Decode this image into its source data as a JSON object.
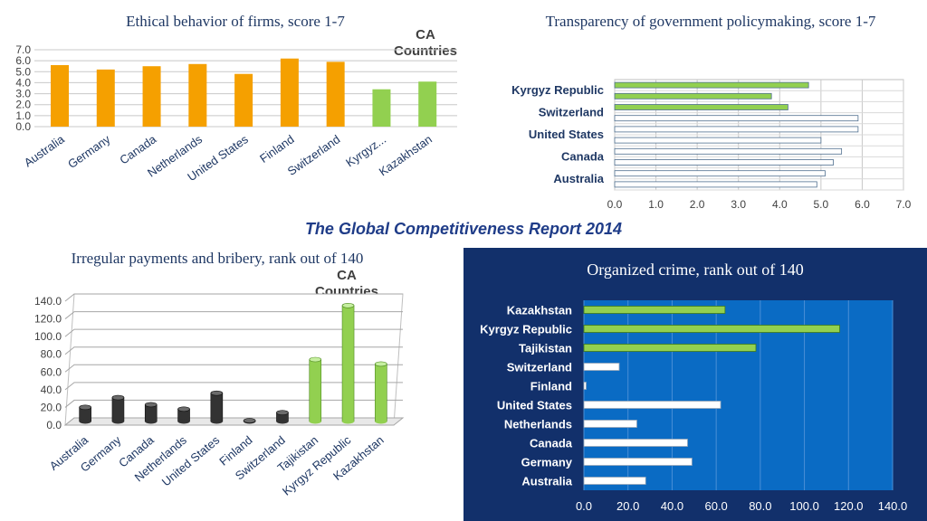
{
  "report_title": "The Global Competitiveness Report 2014",
  "ca_label_line1": "CA",
  "ca_label_line2": "Countries",
  "colors": {
    "orange": "#f5a000",
    "green": "#92d050",
    "dark": "#333333",
    "navy": "#1f3864",
    "panel": "#12306b",
    "plot_blue": "#0a6bc4"
  },
  "chart_data": [
    {
      "id": "ethics",
      "type": "bar",
      "title": "Ethical behavior of firms, score 1-7",
      "categories": [
        "Australia",
        "Germany",
        "Canada",
        "Netherlands",
        "United States",
        "Finland",
        "Switzerland",
        "Kyrgyz...",
        "Kazakhstan"
      ],
      "values": [
        5.6,
        5.2,
        5.5,
        5.7,
        4.8,
        6.2,
        5.9,
        3.4,
        4.1
      ],
      "groups": [
        "other",
        "other",
        "other",
        "other",
        "other",
        "other",
        "other",
        "ca",
        "ca"
      ],
      "ylim": [
        0,
        7
      ],
      "yticks": [
        "0.0",
        "1.0",
        "2.0",
        "3.0",
        "4.0",
        "5.0",
        "6.0",
        "7.0"
      ]
    },
    {
      "id": "transparency",
      "type": "bar",
      "orientation": "horizontal",
      "title": "Transparency of government policymaking, score 1-7",
      "categories": [
        "Australia",
        "",
        "Canada",
        "",
        "United States",
        "",
        "Switzerland",
        "",
        "Kyrgyz Republic",
        ""
      ],
      "values": [
        4.9,
        5.1,
        5.3,
        5.5,
        5.0,
        5.9,
        5.9,
        4.2,
        3.8,
        4.7
      ],
      "groups": [
        "other",
        "other",
        "other",
        "other",
        "other",
        "other",
        "other",
        "ca",
        "ca",
        "ca"
      ],
      "xlim": [
        0,
        7
      ],
      "xticks": [
        "0.0",
        "1.0",
        "2.0",
        "3.0",
        "4.0",
        "5.0",
        "6.0",
        "7.0"
      ]
    },
    {
      "id": "bribery",
      "type": "bar",
      "title": "Irregular payments and bribery, rank out of 140",
      "categories": [
        "Australia",
        "Germany",
        "Canada",
        "Netherlands",
        "United States",
        "Finland",
        "Switzerland",
        "Tajikistan",
        "Kyrgyz Republic",
        "Kazakhstan"
      ],
      "values": [
        16,
        27,
        19,
        14,
        32,
        1,
        10,
        70,
        131,
        65
      ],
      "groups": [
        "other",
        "other",
        "other",
        "other",
        "other",
        "other",
        "other",
        "ca",
        "ca",
        "ca"
      ],
      "ylim": [
        0,
        140
      ],
      "yticks": [
        "0.0",
        "20.0",
        "40.0",
        "60.0",
        "80.0",
        "100.0",
        "120.0",
        "140.0"
      ]
    },
    {
      "id": "crime",
      "type": "bar",
      "orientation": "horizontal",
      "title": "Organized crime, rank out of 140",
      "categories": [
        "Australia",
        "Germany",
        "Canada",
        "Netherlands",
        "United States",
        "Finland",
        "Switzerland",
        "Tajikistan",
        "Kyrgyz Republic",
        "Kazakhstan"
      ],
      "values": [
        28,
        49,
        47,
        24,
        62,
        1,
        16,
        78,
        116,
        64
      ],
      "groups": [
        "other",
        "other",
        "other",
        "other",
        "other",
        "other",
        "other",
        "ca",
        "ca",
        "ca"
      ],
      "xlim": [
        0,
        140
      ],
      "xticks": [
        "0.0",
        "20.0",
        "40.0",
        "60.0",
        "80.0",
        "100.0",
        "120.0",
        "140.0"
      ]
    }
  ]
}
